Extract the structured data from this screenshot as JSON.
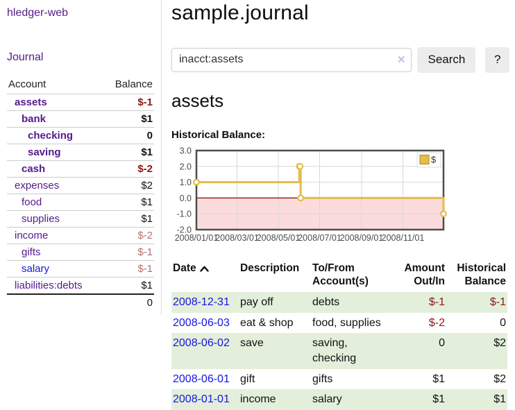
{
  "app_title": "hledger-web",
  "sidebar": {
    "journal_link": "Journal",
    "accounts": {
      "account_header": "Account",
      "balance_header": "Balance",
      "rows": [
        {
          "name": "assets",
          "balance": "$-1"
        },
        {
          "name": "bank",
          "balance": "$1"
        },
        {
          "name": "checking",
          "balance": "0"
        },
        {
          "name": "saving",
          "balance": "$1"
        },
        {
          "name": "cash",
          "balance": "$-2"
        },
        {
          "name": "expenses",
          "balance": "$2"
        },
        {
          "name": "food",
          "balance": "$1"
        },
        {
          "name": "supplies",
          "balance": "$1"
        },
        {
          "name": "income",
          "balance": "$-2"
        },
        {
          "name": "gifts",
          "balance": "$-1"
        },
        {
          "name": "salary",
          "balance": "$-1"
        },
        {
          "name": "liabilities:debts",
          "balance": "$1"
        }
      ],
      "total": "0"
    }
  },
  "main": {
    "title": "sample.journal",
    "search": {
      "value": "inacct:assets",
      "clear_icon": "✕",
      "search_button": "Search",
      "help_button": "?"
    },
    "account_heading": "assets",
    "section_label": "Historical Balance:"
  },
  "chart_data": {
    "type": "line",
    "subtype": "step-after",
    "title": "Historical Balance:",
    "series": [
      {
        "name": "$",
        "color": "#e3bd4a",
        "points": [
          [
            "2008-01-01",
            1
          ],
          [
            "2008-06-01",
            2
          ],
          [
            "2008-06-02",
            2
          ],
          [
            "2008-06-03",
            0
          ],
          [
            "2008-12-31",
            -1
          ]
        ]
      }
    ],
    "xrange": [
      "2008-01-01",
      "2008-12-31"
    ],
    "ylim": [
      -2,
      3
    ],
    "yticks": [
      3.0,
      2.0,
      1.0,
      0.0,
      -1.0,
      -2.0
    ],
    "xtick_labels": [
      "2008/01/01",
      "2008/03/01",
      "2008/05/01",
      "2008/07/01",
      "2008/09/01",
      "2008/11/01"
    ],
    "grid": true,
    "legend_position": "top-right",
    "negative_region_color": "#fbdbdb",
    "zero_line_color": "#8b0000",
    "plot_border_color": "#4d4d4d",
    "grid_color": "#d8d8d8",
    "axis_text_color": "#4b4b4b"
  },
  "register": {
    "headers": {
      "date": "Date",
      "description": "Description",
      "accounts": "To/From Account(s)",
      "amount": "Amount Out/In",
      "balance": "Historical Balance"
    },
    "rows": [
      {
        "date": "2008-12-31",
        "description": "pay off",
        "accounts": "debts",
        "amount": "$-1",
        "balance": "$-1"
      },
      {
        "date": "2008-06-03",
        "description": "eat & shop",
        "accounts": "food, supplies",
        "amount": "$-2",
        "balance": "0"
      },
      {
        "date": "2008-06-02",
        "description": "save",
        "accounts": "saving, checking",
        "amount": "0",
        "balance": "$2"
      },
      {
        "date": "2008-06-01",
        "description": "gift",
        "accounts": "gifts",
        "amount": "$1",
        "balance": "$2"
      },
      {
        "date": "2008-01-01",
        "description": "income",
        "accounts": "salary",
        "amount": "$1",
        "balance": "$1"
      }
    ]
  },
  "colors": {
    "accent_purple": "#551a8b",
    "link_blue": "#1515dd",
    "negative_strong": "#8b1616",
    "negative_soft": "#b56f6f",
    "row_stripe_green": "#e3efdb",
    "chart_gold": "#e3bd4a",
    "button_bg": "#ececec"
  }
}
